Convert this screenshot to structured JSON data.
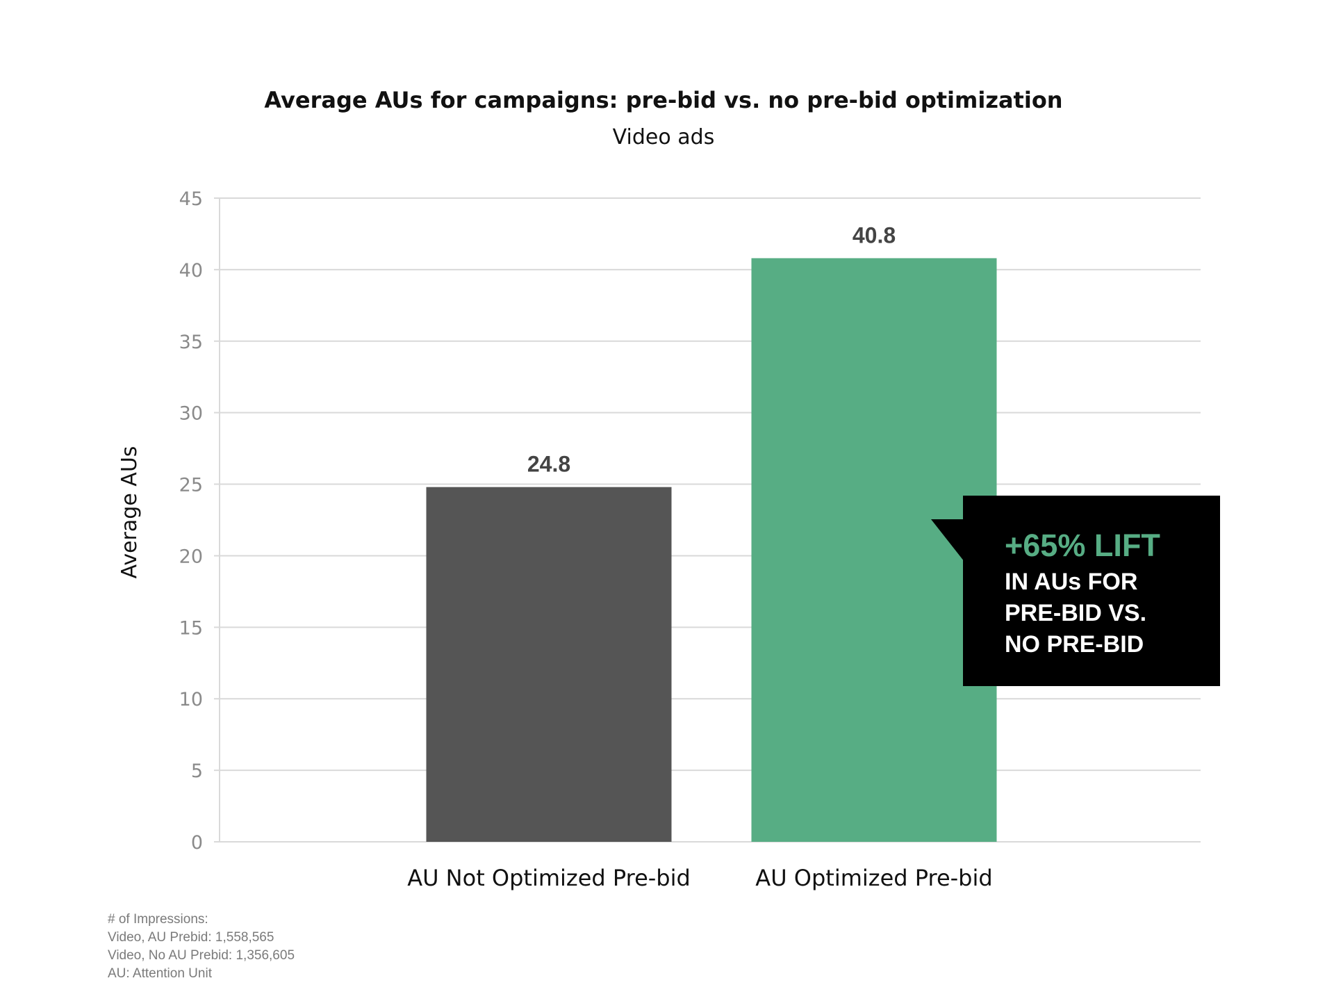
{
  "chart_data": {
    "type": "bar",
    "title": "Average AUs for campaigns: pre-bid vs. no pre-bid optimization",
    "subtitle": "Video ads",
    "xlabel": "",
    "ylabel": "Average AUs",
    "categories": [
      "AU Not Optimized Pre-bid",
      "AU Optimized Pre-bid"
    ],
    "values": [
      24.8,
      40.8
    ],
    "value_labels": [
      "24.8",
      "40.8"
    ],
    "ylim": [
      0,
      45
    ],
    "yticks": [
      0,
      5,
      10,
      15,
      20,
      25,
      30,
      35,
      40,
      45
    ],
    "grid": true,
    "legend": "none",
    "colors": [
      "#555555",
      "#57ad84"
    ]
  },
  "callout": {
    "headline": "+65% LIFT",
    "lines": [
      "IN AUs FOR",
      "PRE-BID VS.",
      "NO PRE-BID"
    ],
    "background": "#000000",
    "headline_color": "#57ad84",
    "text_color": "#ffffff"
  },
  "footnotes": [
    "# of Impressions:",
    "Video, AU Prebid: 1,558,565",
    "Video, No AU Prebid: 1,356,605",
    "AU: Attention Unit"
  ]
}
